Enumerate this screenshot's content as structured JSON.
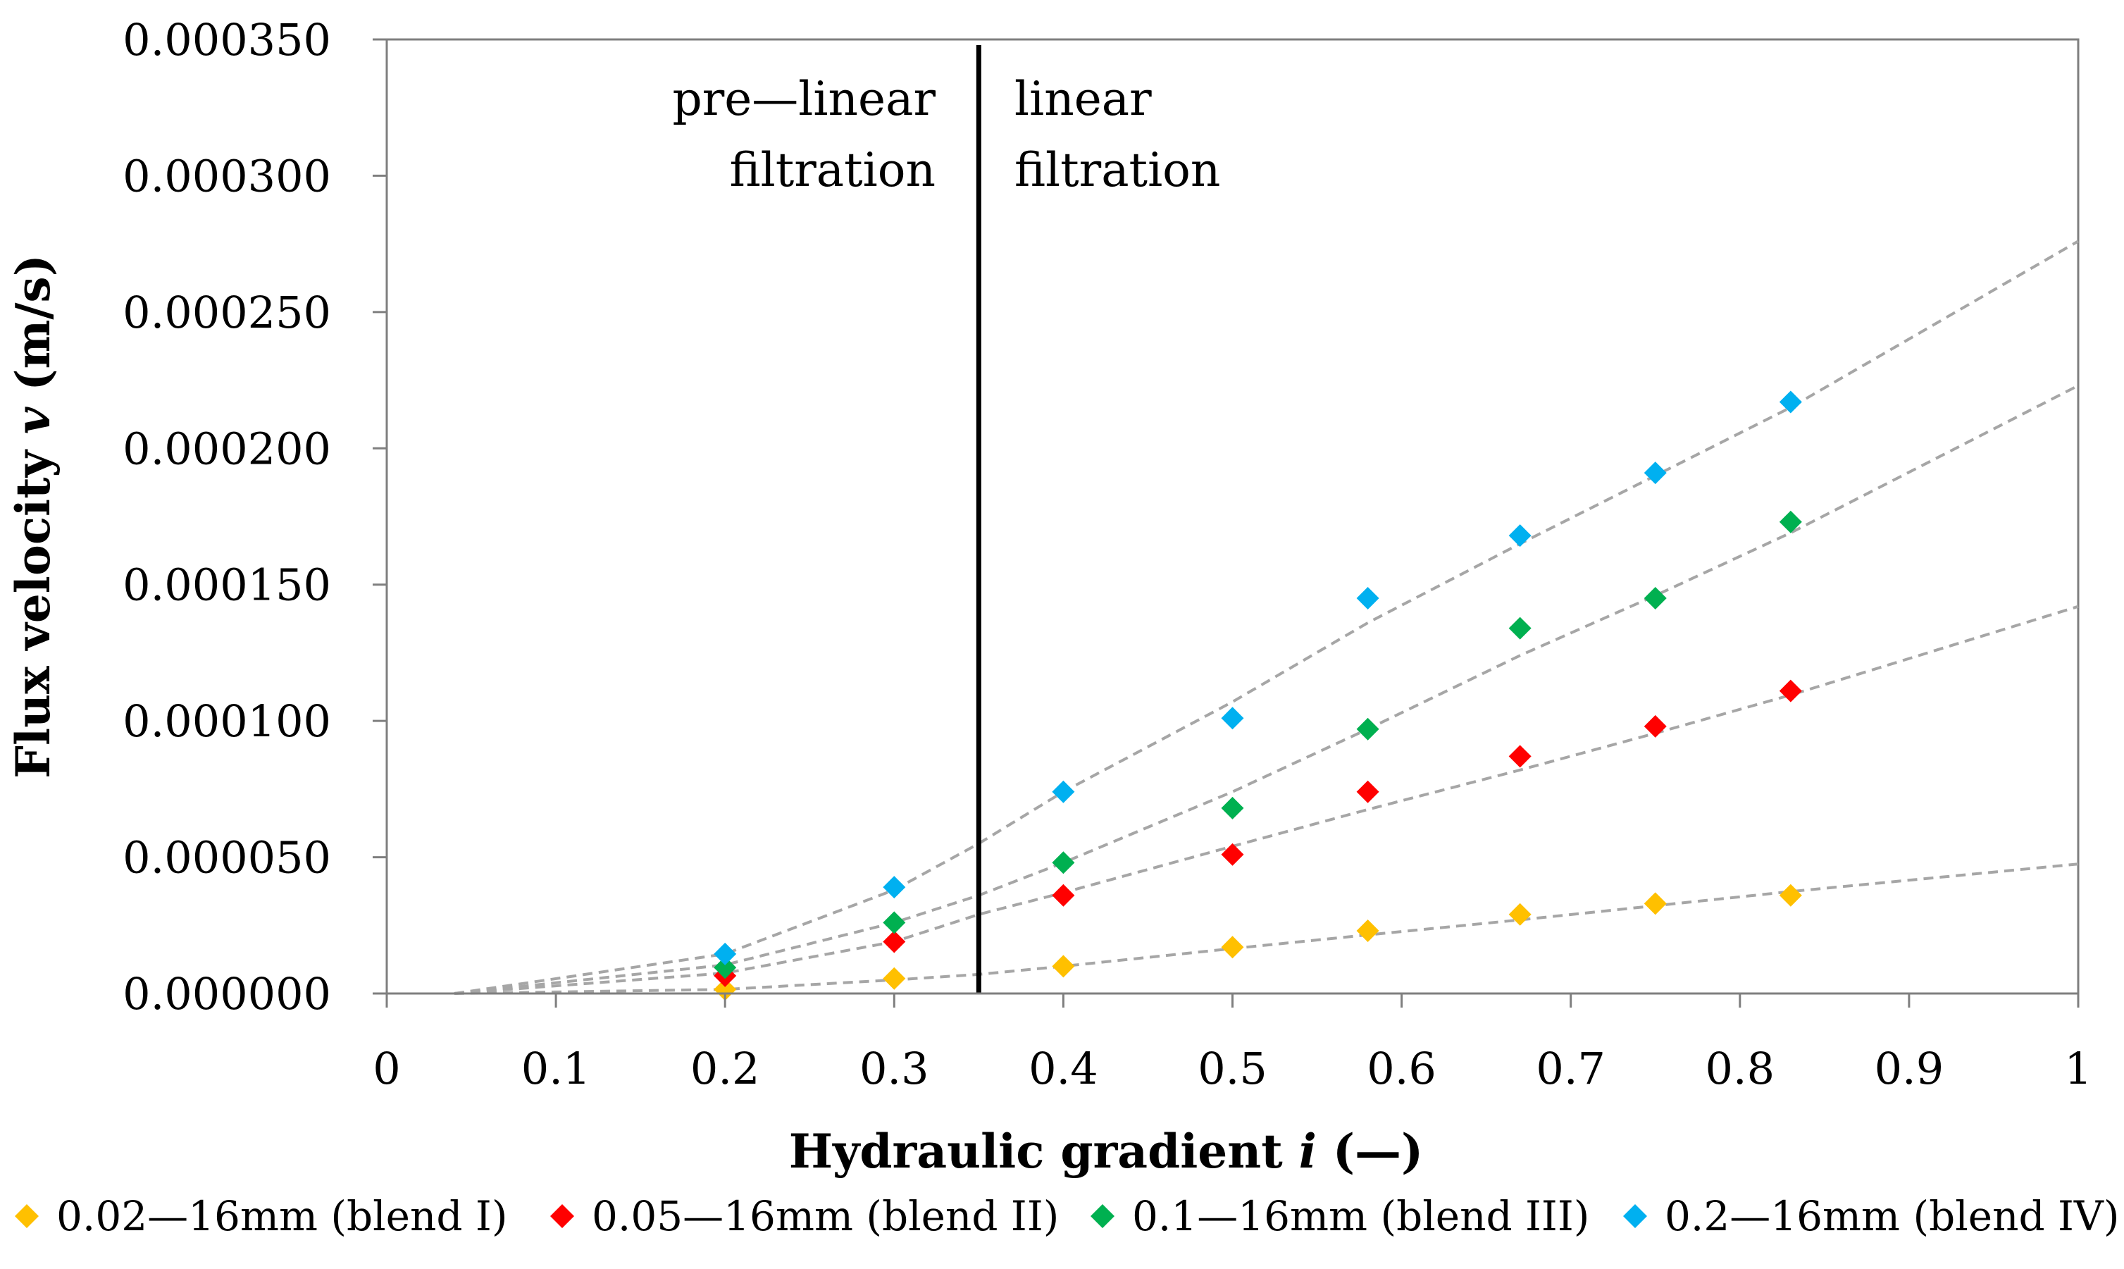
{
  "chart_data": {
    "type": "scatter",
    "title": "",
    "xlabel": "Hydraulic gradient",
    "xlabel_symbol": "i",
    "xlabel_unit": "(—)",
    "ylabel": "Flux velocity",
    "ylabel_symbol": "v",
    "ylabel_unit": "(m/s)",
    "xlim": [
      0,
      1
    ],
    "ylim": [
      0,
      0.00035
    ],
    "x_ticks": [
      0,
      0.1,
      0.2,
      0.3,
      0.4,
      0.5,
      0.6,
      0.7,
      0.8,
      0.9,
      1
    ],
    "x_tick_labels": [
      "0",
      "0.1",
      "0.2",
      "0.3",
      "0.4",
      "0.5",
      "0.6",
      "0.7",
      "0.8",
      "0.9",
      "1"
    ],
    "y_ticks": [
      0,
      5e-05,
      0.0001,
      0.00015,
      0.0002,
      0.00025,
      0.0003,
      0.00035
    ],
    "y_tick_labels": [
      "0.000000",
      "0.000050",
      "0.000100",
      "0.000150",
      "0.000200",
      "0.000250",
      "0.000300",
      "0.000350"
    ],
    "grid": false,
    "legend_position": "bottom",
    "series": [
      {
        "name": "0.02—16mm (blend I)",
        "color": "#FFC000",
        "x": [
          0.2,
          0.3,
          0.4,
          0.5,
          0.58,
          0.67,
          0.75,
          0.83
        ],
        "y": [
          1.5e-06,
          5.5e-06,
          1e-05,
          1.7e-05,
          2.3e-05,
          2.9e-05,
          3.3e-05,
          3.6e-05
        ]
      },
      {
        "name": "0.05—16mm (blend II)",
        "color": "#FF0000",
        "x": [
          0.2,
          0.3,
          0.4,
          0.5,
          0.58,
          0.67,
          0.75,
          0.83
        ],
        "y": [
          6.5e-06,
          1.9e-05,
          3.6e-05,
          5.1e-05,
          7.4e-05,
          8.7e-05,
          9.8e-05,
          0.000111
        ]
      },
      {
        "name": "0.1—16mm (blend III)",
        "color": "#00B050",
        "x": [
          0.2,
          0.3,
          0.4,
          0.5,
          0.58,
          0.67,
          0.75,
          0.83
        ],
        "y": [
          9.5e-06,
          2.6e-05,
          4.8e-05,
          6.8e-05,
          9.7e-05,
          0.000134,
          0.000145,
          0.000173
        ]
      },
      {
        "name": "0.2—16mm (blend IV)",
        "color": "#00B0F0",
        "x": [
          0.2,
          0.3,
          0.4,
          0.5,
          0.58,
          0.67,
          0.75,
          0.83
        ],
        "y": [
          1.45e-05,
          3.9e-05,
          7.4e-05,
          0.000101,
          0.000145,
          0.000168,
          0.000191,
          0.000217
        ]
      }
    ],
    "trendlines": [
      {
        "series": "0.02—16mm (blend I)",
        "x": [
          0.04,
          0.2,
          0.3,
          0.35,
          0.4,
          0.5,
          0.58,
          0.67,
          0.75,
          0.83,
          1.0
        ],
        "y": [
          0,
          1.5e-06,
          5e-06,
          7e-06,
          1e-05,
          1.65e-05,
          2.15e-05,
          2.7e-05,
          3.22e-05,
          3.74e-05,
          4.75e-05
        ]
      },
      {
        "series": "0.05—16mm (blend II)",
        "x": [
          0.04,
          0.2,
          0.3,
          0.35,
          0.4,
          0.5,
          0.58,
          0.67,
          0.75,
          0.83,
          1.0
        ],
        "y": [
          0,
          7.5e-06,
          1.9e-05,
          2.9e-05,
          3.7e-05,
          5.4e-05,
          6.75e-05,
          8.2e-05,
          9.55e-05,
          0.0001095,
          0.000142
        ]
      },
      {
        "series": "0.1—16mm (blend III)",
        "x": [
          0.04,
          0.2,
          0.3,
          0.35,
          0.4,
          0.5,
          0.58,
          0.67,
          0.75,
          0.83,
          1.0
        ],
        "y": [
          0,
          1.05e-05,
          2.6e-05,
          3.6e-05,
          4.8e-05,
          7.4e-05,
          9.7e-05,
          0.000124,
          0.000146,
          0.000169,
          0.000223
        ]
      },
      {
        "series": "0.2—16mm (blend IV)",
        "x": [
          0.04,
          0.2,
          0.3,
          0.35,
          0.4,
          0.5,
          0.58,
          0.67,
          0.75,
          0.83,
          1.0
        ],
        "y": [
          0,
          1.45e-05,
          3.8e-05,
          5.5e-05,
          7.4e-05,
          0.000107,
          0.000136,
          0.000165,
          0.00019,
          0.000215,
          0.000276
        ]
      }
    ],
    "divider": {
      "x": 0.35
    },
    "annotations": {
      "pre_linear_line1": "pre—linear",
      "pre_linear_line2": "filtration",
      "linear_line1": "linear",
      "linear_line2": "filtration"
    }
  }
}
